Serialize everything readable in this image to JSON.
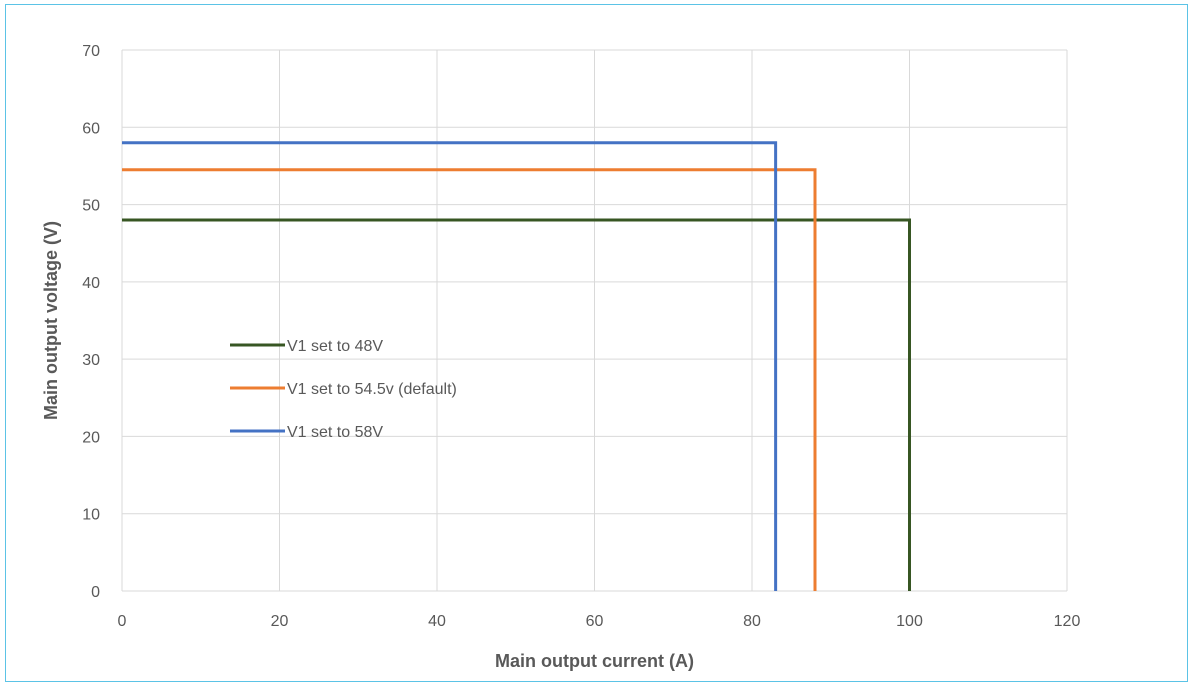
{
  "chart_data": {
    "type": "line",
    "xlabel": "Main output current (A)",
    "ylabel": "Main output voltage (V)",
    "xlim": [
      0,
      120
    ],
    "ylim": [
      0,
      70
    ],
    "x_ticks": [
      0,
      20,
      40,
      60,
      80,
      100,
      120
    ],
    "y_ticks": [
      0,
      10,
      20,
      30,
      40,
      50,
      60,
      70
    ],
    "grid": true,
    "legend_position": "center-left",
    "series": [
      {
        "name": "V1 set to 48V",
        "color": "#375623",
        "x": [
          0,
          100,
          100
        ],
        "y": [
          48,
          48,
          0
        ]
      },
      {
        "name": "V1 set to 54.5v (default)",
        "color": "#ed7d31",
        "x": [
          0,
          88,
          88
        ],
        "y": [
          54.5,
          54.5,
          0
        ]
      },
      {
        "name": "V1 set to 58V",
        "color": "#4472c4",
        "x": [
          0,
          83,
          83
        ],
        "y": [
          58,
          58,
          0
        ]
      }
    ]
  }
}
